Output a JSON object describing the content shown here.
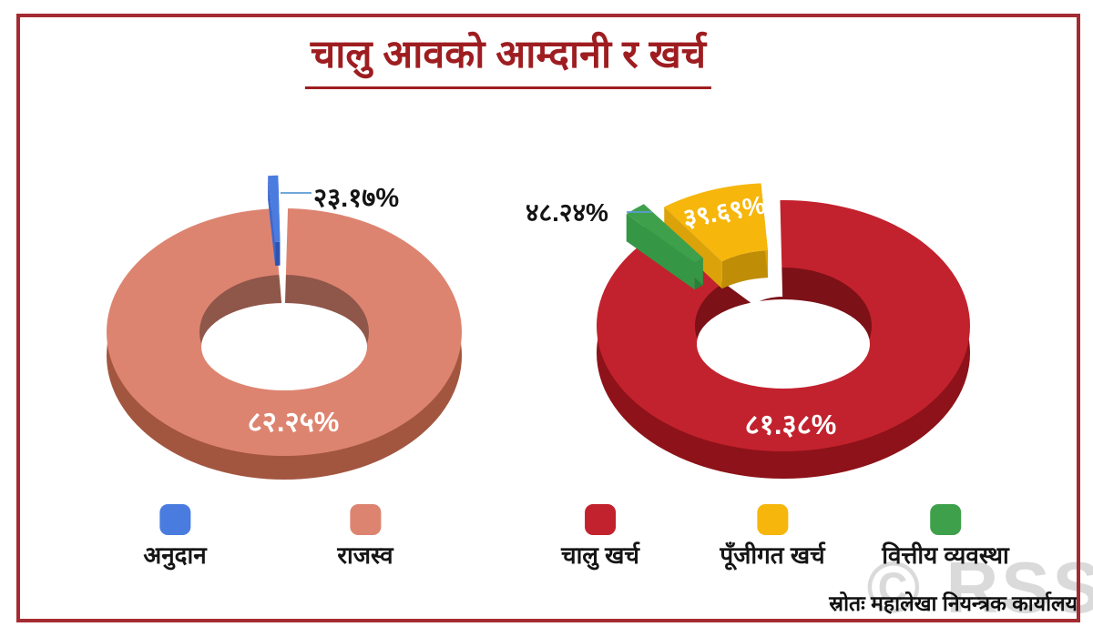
{
  "title": "चालु आवको आम्दानी र खर्च",
  "title_color": "#9E1D20",
  "frame_color": "#A42B31",
  "source": "स्रोतः महालेखा नियन्त्रक कार्यालय",
  "watermark": "© RSS",
  "chart_data": [
    {
      "type": "pie",
      "style": "3d-doughnut-exploded",
      "position": "left",
      "title": "",
      "labels": [
        "अनुदान",
        "राजस्व"
      ],
      "values": [
        23.17,
        82.25
      ],
      "value_labels": [
        "२३.१७%",
        "८२.२५%"
      ],
      "colors": [
        "#4A7CE0",
        "#DD8470"
      ],
      "legend_position": "bottom"
    },
    {
      "type": "pie",
      "style": "3d-doughnut-exploded",
      "position": "right",
      "title": "",
      "labels": [
        "चालु खर्च",
        "पूँजीगत खर्च",
        "वित्तीय व्यवस्था"
      ],
      "values": [
        81.38,
        39.69,
        48.24
      ],
      "value_labels": [
        "८१.३८%",
        "३९.६९%",
        "४८.२४%"
      ],
      "colors": [
        "#C2222D",
        "#F6B60B",
        "#3FA04C"
      ],
      "legend_position": "bottom"
    }
  ]
}
